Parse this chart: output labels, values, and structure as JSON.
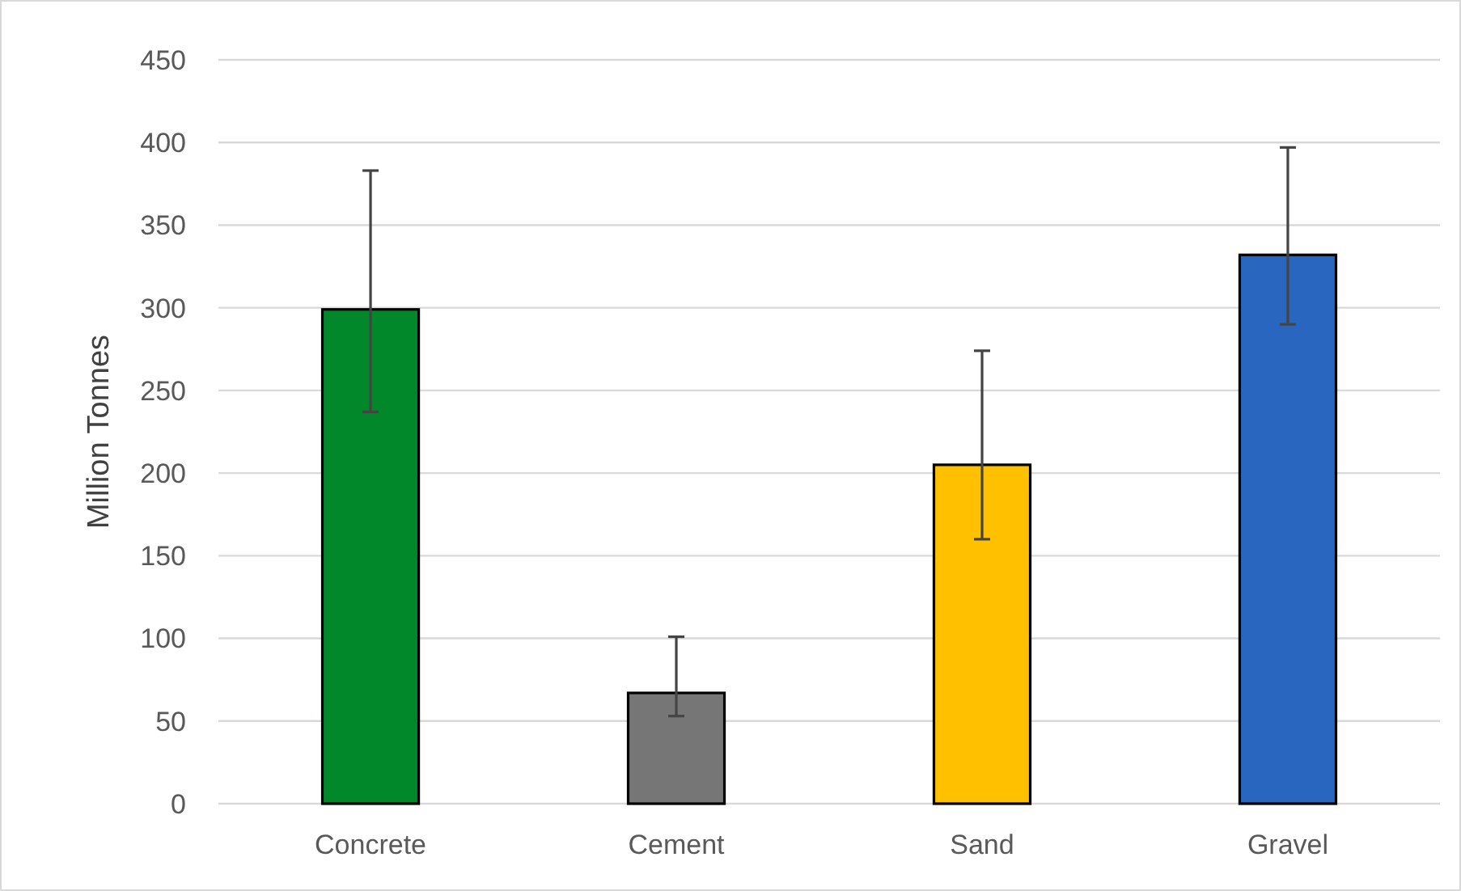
{
  "chart_data": {
    "type": "bar",
    "ylabel": "Million Tonnes",
    "categories": [
      "Concrete",
      "Cement",
      "Sand",
      "Gravel"
    ],
    "values": [
      299,
      67,
      205,
      332
    ],
    "colors": [
      "#00882b",
      "#767676",
      "#ffc000",
      "#2866bf"
    ],
    "errors": [
      [
        237,
        383
      ],
      [
        53,
        101
      ],
      [
        160,
        274
      ],
      [
        290,
        397
      ]
    ],
    "ylim": [
      0,
      450
    ],
    "yticks": [
      0,
      50,
      100,
      150,
      200,
      250,
      300,
      350,
      400,
      450
    ],
    "grid": "y"
  }
}
